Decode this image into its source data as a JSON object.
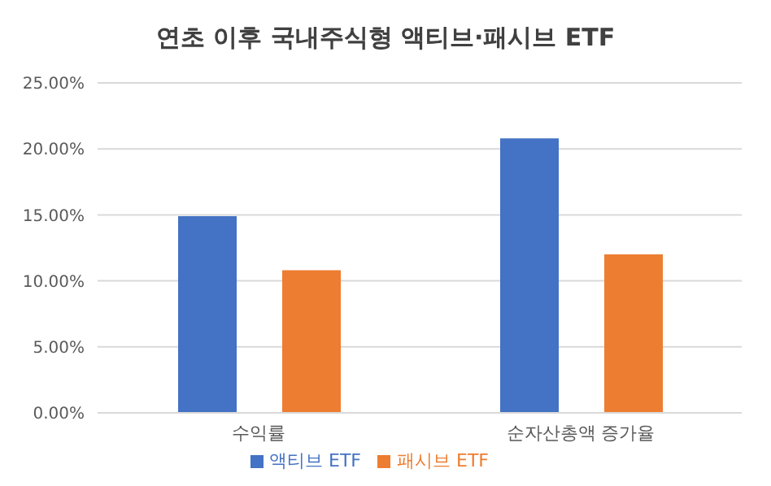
{
  "chart_data": {
    "type": "bar",
    "title": "연초 이후 국내주식형 액티브·패시브 ETF",
    "categories": [
      "수익률",
      "순자산총액 증가율"
    ],
    "series": [
      {
        "name": "액티브 ETF",
        "color": "#4472c4",
        "values": [
          14.9,
          20.8
        ]
      },
      {
        "name": "패시브 ETF",
        "color": "#ed7d31",
        "values": [
          10.8,
          12.0
        ]
      }
    ],
    "ylim": [
      0,
      25
    ],
    "yticks": [
      {
        "value": 0,
        "label": "0.00%"
      },
      {
        "value": 5,
        "label": "5.00%"
      },
      {
        "value": 10,
        "label": "10.00%"
      },
      {
        "value": 15,
        "label": "15.00%"
      },
      {
        "value": 20,
        "label": "20.00%"
      },
      {
        "value": 25,
        "label": "25.00%"
      }
    ],
    "grid": "y",
    "legend": "bottom"
  }
}
